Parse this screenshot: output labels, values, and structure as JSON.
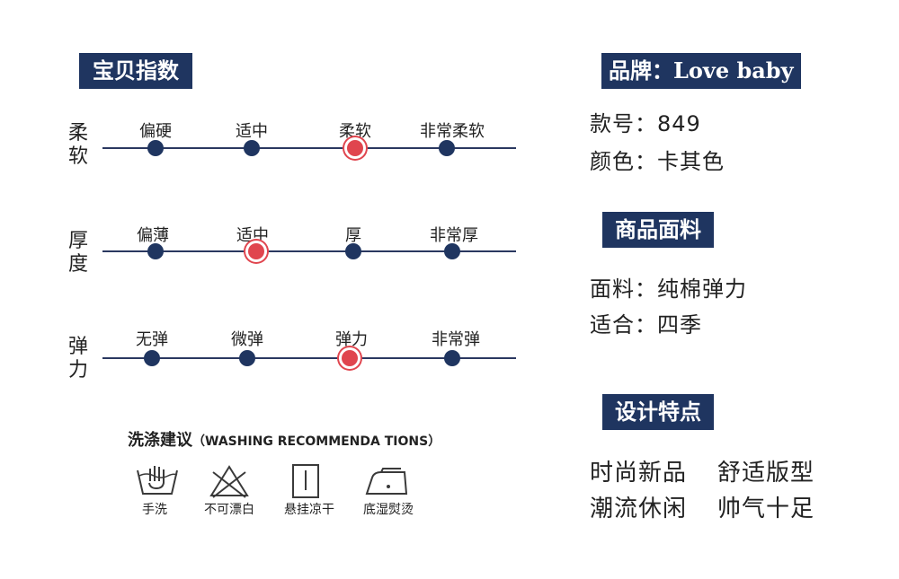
{
  "index_title": "宝贝指数",
  "rows": [
    {
      "label": "柔软",
      "levels": [
        "偏硬",
        "适中",
        "柔软",
        "非常柔软"
      ],
      "selected": 2
    },
    {
      "label": "厚度",
      "levels": [
        "偏薄",
        "适中",
        "厚",
        "非常厚"
      ],
      "selected": 1
    },
    {
      "label": "弹力",
      "levels": [
        "无弹",
        "微弹",
        "弹力",
        "非常弹"
      ],
      "selected": 2
    }
  ],
  "washing": {
    "title": "洗涤建议",
    "title_en": "（WASHING RECOMMENDA TIONS）",
    "items": [
      {
        "icon": "hand-wash-icon",
        "label": "手洗"
      },
      {
        "icon": "no-bleach-icon",
        "label": "不可漂白"
      },
      {
        "icon": "hang-dry-icon",
        "label": "悬挂凉干"
      },
      {
        "icon": "iron-low-icon",
        "label": "底湿熨烫"
      }
    ]
  },
  "brand": {
    "label": "品牌：",
    "value": "Love baby"
  },
  "model": "款号：849",
  "color": "颜色：卡其色",
  "fabric_title": "商品面料",
  "fabric": "面料：纯棉弹力",
  "season": "适合：四季",
  "design_title": "设计特点",
  "features": [
    "时尚新品",
    "舒适版型",
    "潮流休闲",
    "帅气十足"
  ],
  "colors": {
    "navy": "#1f3560",
    "selected": "#e0454e"
  }
}
